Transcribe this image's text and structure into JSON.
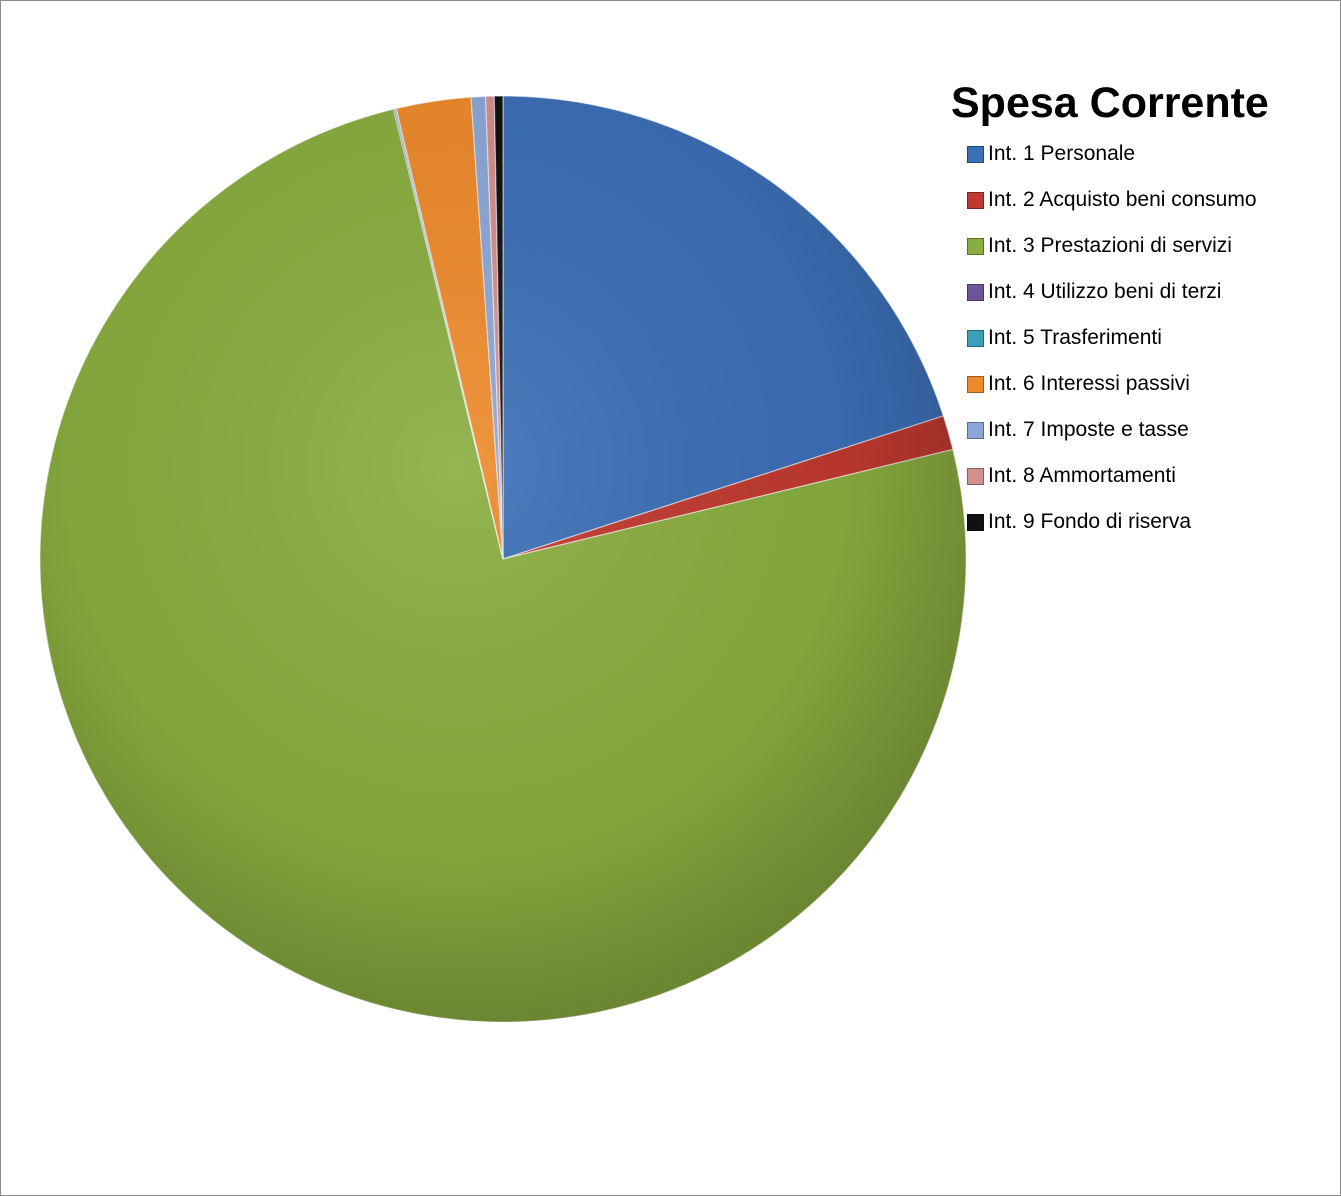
{
  "chart_data": {
    "type": "pie",
    "title": "Spesa Corrente",
    "legend_position": "right",
    "slices": [
      {
        "label": "Int. 1 Personale",
        "value": 20.0,
        "color": "#3c6fb6"
      },
      {
        "label": "Int. 2 Acquisto beni consumo",
        "value": 1.2,
        "color": "#c0392f"
      },
      {
        "label": "Int. 3 Prestazioni di servizi",
        "value": 75.0,
        "color": "#89ad3f"
      },
      {
        "label": "Int. 4 Utilizzo beni di terzi",
        "value": 0.05,
        "color": "#6e559a"
      },
      {
        "label": "Int. 5 Trasferimenti",
        "value": 0.05,
        "color": "#3aa0b8"
      },
      {
        "label": "Int. 6 Interessi passivi",
        "value": 2.6,
        "color": "#ee8a2b"
      },
      {
        "label": "Int. 7 Imposte e tasse",
        "value": 0.5,
        "color": "#8ca7d6"
      },
      {
        "label": "Int. 8 Ammortamenti",
        "value": 0.3,
        "color": "#d48f8f"
      },
      {
        "label": "Int. 9 Fondo di riserva",
        "value": 0.3,
        "color": "#111111"
      }
    ]
  }
}
